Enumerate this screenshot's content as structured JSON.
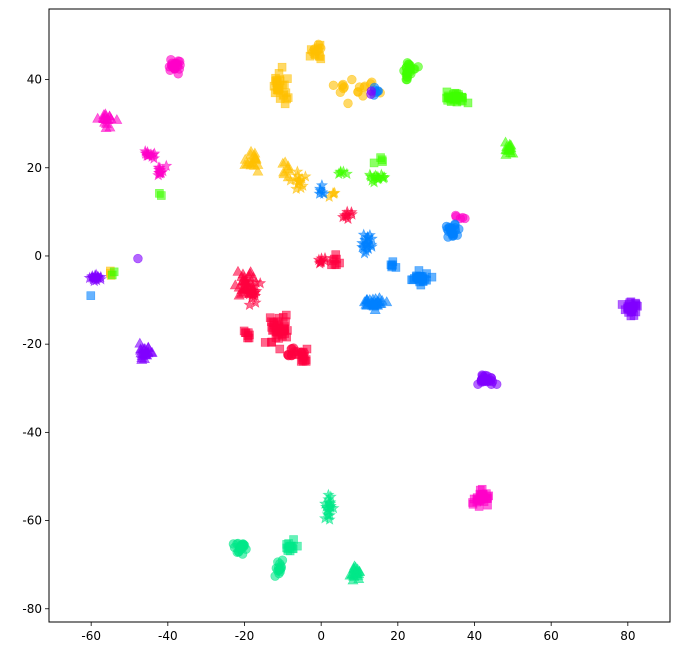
{
  "chart_data": {
    "type": "scatter",
    "title": "",
    "xlabel": "",
    "ylabel": "",
    "xlim": [
      -71,
      91
    ],
    "ylim": [
      -83,
      56
    ],
    "grid": false,
    "legend": "none",
    "x_ticks": [
      "-60",
      "-40",
      "-20",
      "0",
      "20",
      "40",
      "60",
      "80"
    ],
    "y_ticks": [
      "-80",
      "-60",
      "-40",
      "-20",
      "0",
      "20",
      "40"
    ],
    "x_tick_values": [
      -60,
      -40,
      -20,
      0,
      20,
      40,
      60,
      80
    ],
    "y_tick_values": [
      -80,
      -60,
      -40,
      -20,
      0,
      20,
      40
    ],
    "marker_alpha": 0.6,
    "series": [
      {
        "color": "#ffbf00",
        "marker": "square",
        "clusters": [
          [
            -11,
            39,
            4,
            8,
            24
          ],
          [
            -1,
            46,
            3,
            3,
            10
          ],
          [
            -9,
            36,
            1.5,
            1.5,
            3
          ]
        ]
      },
      {
        "color": "#ffbf00",
        "marker": "circle",
        "clusters": [
          [
            9,
            38,
            10,
            4,
            18
          ],
          [
            -1,
            47,
            2,
            2,
            6
          ]
        ]
      },
      {
        "color": "#ffbf00",
        "marker": "triangle",
        "clusters": [
          [
            -18,
            22,
            4,
            4,
            18
          ],
          [
            -9,
            20,
            2.5,
            4,
            8
          ]
        ]
      },
      {
        "color": "#ffbf00",
        "marker": "star",
        "clusters": [
          [
            -6,
            17,
            3,
            3,
            14
          ],
          [
            3,
            14,
            2,
            2,
            4
          ]
        ]
      },
      {
        "color": "#ffbf00",
        "marker": "square",
        "clusters": [
          [
            -55,
            -4,
            2,
            1,
            3
          ]
        ]
      },
      {
        "color": "#ff00c8",
        "marker": "circle",
        "clusters": [
          [
            -38,
            43,
            3,
            2.5,
            22
          ],
          [
            36,
            9,
            2.5,
            1.5,
            5
          ]
        ]
      },
      {
        "color": "#ff00c8",
        "marker": "triangle",
        "clusters": [
          [
            -56,
            31,
            3.5,
            4,
            18
          ]
        ]
      },
      {
        "color": "#ff00c8",
        "marker": "star",
        "clusters": [
          [
            -45,
            23,
            2.5,
            2,
            12
          ],
          [
            -42,
            19,
            3,
            2,
            12
          ]
        ]
      },
      {
        "color": "#ff00c8",
        "marker": "square",
        "clusters": [
          [
            42,
            -55,
            4,
            3,
            30
          ]
        ]
      },
      {
        "color": "#ff0040",
        "marker": "square",
        "clusters": [
          [
            -11,
            -17,
            5,
            6,
            40
          ],
          [
            -4,
            -23,
            4,
            3,
            12
          ],
          [
            -19,
            -18,
            2,
            3,
            8
          ],
          [
            3,
            -1,
            3,
            3,
            8
          ]
        ]
      },
      {
        "color": "#ff0040",
        "marker": "triangle",
        "clusters": [
          [
            -20,
            -6,
            4,
            6,
            30
          ]
        ]
      },
      {
        "color": "#ff0040",
        "marker": "star",
        "clusters": [
          [
            -18,
            -8,
            3,
            4,
            20
          ],
          [
            0,
            -1,
            2,
            2,
            8
          ],
          [
            7,
            9,
            3,
            2,
            8
          ]
        ]
      },
      {
        "color": "#ff0040",
        "marker": "circle",
        "clusters": [
          [
            -7,
            -22,
            4,
            3,
            14
          ]
        ]
      },
      {
        "color": "#40ff00",
        "marker": "circle",
        "clusters": [
          [
            23,
            42,
            3,
            3,
            24
          ]
        ]
      },
      {
        "color": "#40ff00",
        "marker": "square",
        "clusters": [
          [
            35,
            36,
            5,
            2.5,
            30
          ],
          [
            16,
            22,
            4,
            2,
            4
          ]
        ]
      },
      {
        "color": "#40ff00",
        "marker": "triangle",
        "clusters": [
          [
            49,
            24,
            2,
            3,
            16
          ]
        ]
      },
      {
        "color": "#40ff00",
        "marker": "star",
        "clusters": [
          [
            15,
            18,
            4,
            3,
            14
          ],
          [
            6,
            19,
            3,
            1,
            5
          ]
        ]
      },
      {
        "color": "#40ff00",
        "marker": "square",
        "clusters": [
          [
            -42,
            14,
            1,
            1,
            2
          ],
          [
            -54,
            -4,
            1,
            1,
            2
          ]
        ]
      },
      {
        "color": "#0080ff",
        "marker": "circle",
        "clusters": [
          [
            34,
            6,
            3,
            3,
            22
          ],
          [
            14,
            37,
            5,
            2,
            6
          ]
        ]
      },
      {
        "color": "#0080ff",
        "marker": "square",
        "clusters": [
          [
            26,
            -5,
            4,
            3,
            26
          ],
          [
            19,
            -2,
            2,
            2,
            6
          ],
          [
            -60,
            -9,
            1,
            1,
            1
          ]
        ]
      },
      {
        "color": "#0080ff",
        "marker": "triangle",
        "clusters": [
          [
            14,
            -11,
            5,
            2.5,
            30
          ]
        ]
      },
      {
        "color": "#0080ff",
        "marker": "star",
        "clusters": [
          [
            12,
            3,
            3,
            4,
            20
          ],
          [
            0,
            15,
            2,
            4,
            6
          ]
        ]
      },
      {
        "color": "#8000ff",
        "marker": "circle",
        "clusters": [
          [
            43,
            -28,
            4,
            2,
            26
          ]
        ]
      },
      {
        "color": "#8000ff",
        "marker": "square",
        "clusters": [
          [
            81,
            -12,
            3,
            2.5,
            30
          ]
        ]
      },
      {
        "color": "#8000ff",
        "marker": "triangle",
        "clusters": [
          [
            -46,
            -22,
            3,
            3,
            24
          ]
        ]
      },
      {
        "color": "#8000ff",
        "marker": "star",
        "clusters": [
          [
            -59,
            -5,
            2.5,
            1.5,
            18
          ]
        ]
      },
      {
        "color": "#8000ff",
        "marker": "circle",
        "clusters": [
          [
            -48,
            -0.5,
            0.5,
            0.5,
            1
          ],
          [
            13,
            37,
            1,
            1,
            2
          ]
        ]
      },
      {
        "color": "#00e888",
        "marker": "circle",
        "clusters": [
          [
            -21,
            -66,
            3,
            2.5,
            22
          ],
          [
            -11,
            -71,
            2,
            2.5,
            14
          ]
        ]
      },
      {
        "color": "#00e888",
        "marker": "square",
        "clusters": [
          [
            -8,
            -66,
            3,
            2,
            14
          ]
        ]
      },
      {
        "color": "#00e888",
        "marker": "triangle",
        "clusters": [
          [
            9,
            -72,
            2.5,
            3,
            20
          ]
        ]
      },
      {
        "color": "#00e888",
        "marker": "star",
        "clusters": [
          [
            2,
            -57,
            2,
            5,
            20
          ]
        ]
      }
    ],
    "points": []
  }
}
